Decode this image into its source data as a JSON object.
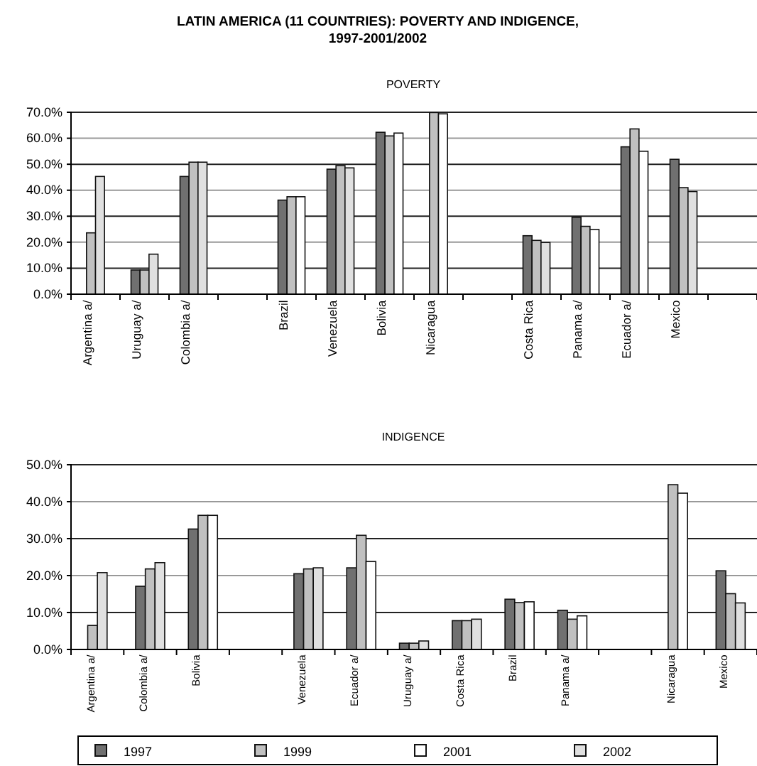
{
  "chart_data": [
    {
      "type": "bar",
      "title": "LATIN AMERICA (11 COUNTRIES): POVERTY AND INDIGENCE, 1997-2001/2002",
      "subtitle": "POVERTY",
      "categories": [
        "Argentina a/",
        "Uruguay a/",
        "Colombia a/",
        null,
        "Brazil",
        "Venezuela",
        "Bolivia",
        "Nicaragua",
        null,
        "Costa Rica",
        "Panama a/",
        "Ecuador a/",
        "Mexico",
        null
      ],
      "series": [
        {
          "color": "#707070",
          "values": [
            null,
            9.3,
            45.3,
            null,
            36.2,
            48.1,
            62.3,
            null,
            null,
            22.5,
            29.6,
            56.7,
            51.9,
            null
          ]
        },
        {
          "color": "#c0c0c0",
          "values": [
            23.6,
            9.3,
            50.8,
            null,
            37.5,
            49.5,
            60.9,
            69.9,
            null,
            20.7,
            26.1,
            63.6,
            41.0,
            null
          ]
        },
        {
          "color": "#ffffff",
          "values": [
            null,
            null,
            null,
            null,
            37.5,
            null,
            62.0,
            69.4,
            null,
            null,
            24.9,
            55.0,
            null,
            null
          ]
        },
        {
          "color": "#e0e0e0",
          "values": [
            45.3,
            15.4,
            50.8,
            null,
            null,
            48.6,
            null,
            null,
            null,
            19.9,
            null,
            null,
            39.5,
            null
          ]
        }
      ],
      "ylim": [
        0,
        70
      ],
      "yticks": [
        {
          "value": 0,
          "label": "0.0%"
        },
        {
          "value": 10,
          "label": "10.0%"
        },
        {
          "value": 20,
          "label": "20.0%"
        },
        {
          "value": 30,
          "label": "30.0%"
        },
        {
          "value": 40,
          "label": "40.0%"
        },
        {
          "value": 50,
          "label": "50.0%"
        },
        {
          "value": 60,
          "label": "60.0%"
        },
        {
          "value": 70,
          "label": "70.0%"
        }
      ],
      "grid": "y",
      "legend": false
    },
    {
      "type": "bar",
      "subtitle": "INDIGENCE",
      "categories": [
        "Argentina a/",
        "Colombia a/",
        "Bolivia",
        null,
        "Venezuela",
        "Ecuador a/",
        "Uruguay a/",
        "Costa Rica",
        "Brazil",
        "Panama a/",
        null,
        "Nicaragua",
        "Mexico"
      ],
      "series": [
        {
          "name": "1997",
          "color": "#707070",
          "values": [
            null,
            17.1,
            32.6,
            null,
            20.5,
            22.1,
            1.7,
            7.8,
            13.6,
            10.6,
            null,
            null,
            21.3
          ]
        },
        {
          "name": "1999",
          "color": "#c0c0c0",
          "values": [
            6.5,
            21.8,
            36.3,
            null,
            21.8,
            30.9,
            1.7,
            7.8,
            12.7,
            8.2,
            null,
            44.6,
            15.1
          ]
        },
        {
          "name": "2001",
          "color": "#ffffff",
          "values": [
            null,
            null,
            36.3,
            null,
            null,
            23.8,
            null,
            null,
            12.9,
            9.1,
            null,
            42.3,
            null
          ]
        },
        {
          "name": "2002",
          "color": "#e0e0e0",
          "values": [
            20.8,
            23.5,
            null,
            null,
            22.1,
            null,
            2.3,
            8.2,
            null,
            null,
            null,
            null,
            12.6
          ]
        }
      ],
      "ylim": [
        0,
        50
      ],
      "yticks": [
        {
          "value": 0,
          "label": "0.0%"
        },
        {
          "value": 10,
          "label": "10.0%"
        },
        {
          "value": 20,
          "label": "20.0%"
        },
        {
          "value": 30,
          "label": "30.0%"
        },
        {
          "value": 40,
          "label": "40.0%"
        },
        {
          "value": 50,
          "label": "50.0%"
        }
      ],
      "grid": "y",
      "legend": "bottom"
    }
  ]
}
